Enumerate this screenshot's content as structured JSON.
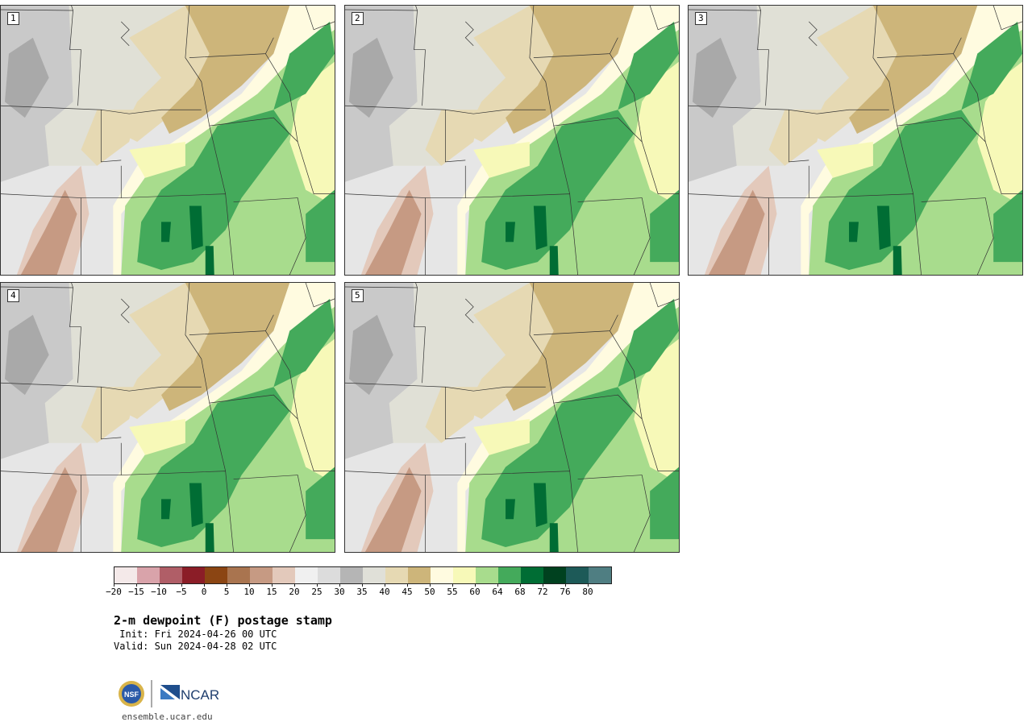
{
  "panels": [
    {
      "label": "1",
      "variant": 0
    },
    {
      "label": "2",
      "variant": 1
    },
    {
      "label": "3",
      "variant": 2
    },
    {
      "label": "4",
      "variant": 3
    },
    {
      "label": "5",
      "variant": 4
    }
  ],
  "colorbar": {
    "colors": [
      "#f4e9e9",
      "#d9a3aa",
      "#b05e67",
      "#8b1d27",
      "#8b4513",
      "#a9744f",
      "#c69a83",
      "#e3c9bb",
      "#f0f0f0",
      "#dcdcdc",
      "#b5b5b5",
      "#e0e0d8",
      "#e6d9b3",
      "#cdb57a",
      "#fffbe0",
      "#f7f9b8",
      "#a8dc8d",
      "#44aa5b",
      "#006d34",
      "#00411f",
      "#1d5a58",
      "#4f7e82"
    ],
    "tick_labels": [
      "−20",
      "−15",
      "−10",
      "−5",
      "0",
      "5",
      "10",
      "15",
      "20",
      "25",
      "30",
      "35",
      "40",
      "45",
      "50",
      "55",
      "60",
      "64",
      "68",
      "72",
      "76",
      "80"
    ]
  },
  "title": "2-m dewpoint (F) postage stamp",
  "init": " Init: Fri 2024-04-26 00 UTC",
  "valid": "Valid: Sun 2024-04-28 02 UTC",
  "logos": {
    "nsf": "NSF",
    "ncar": "NCAR"
  },
  "url": "ensemble.ucar.edu"
}
